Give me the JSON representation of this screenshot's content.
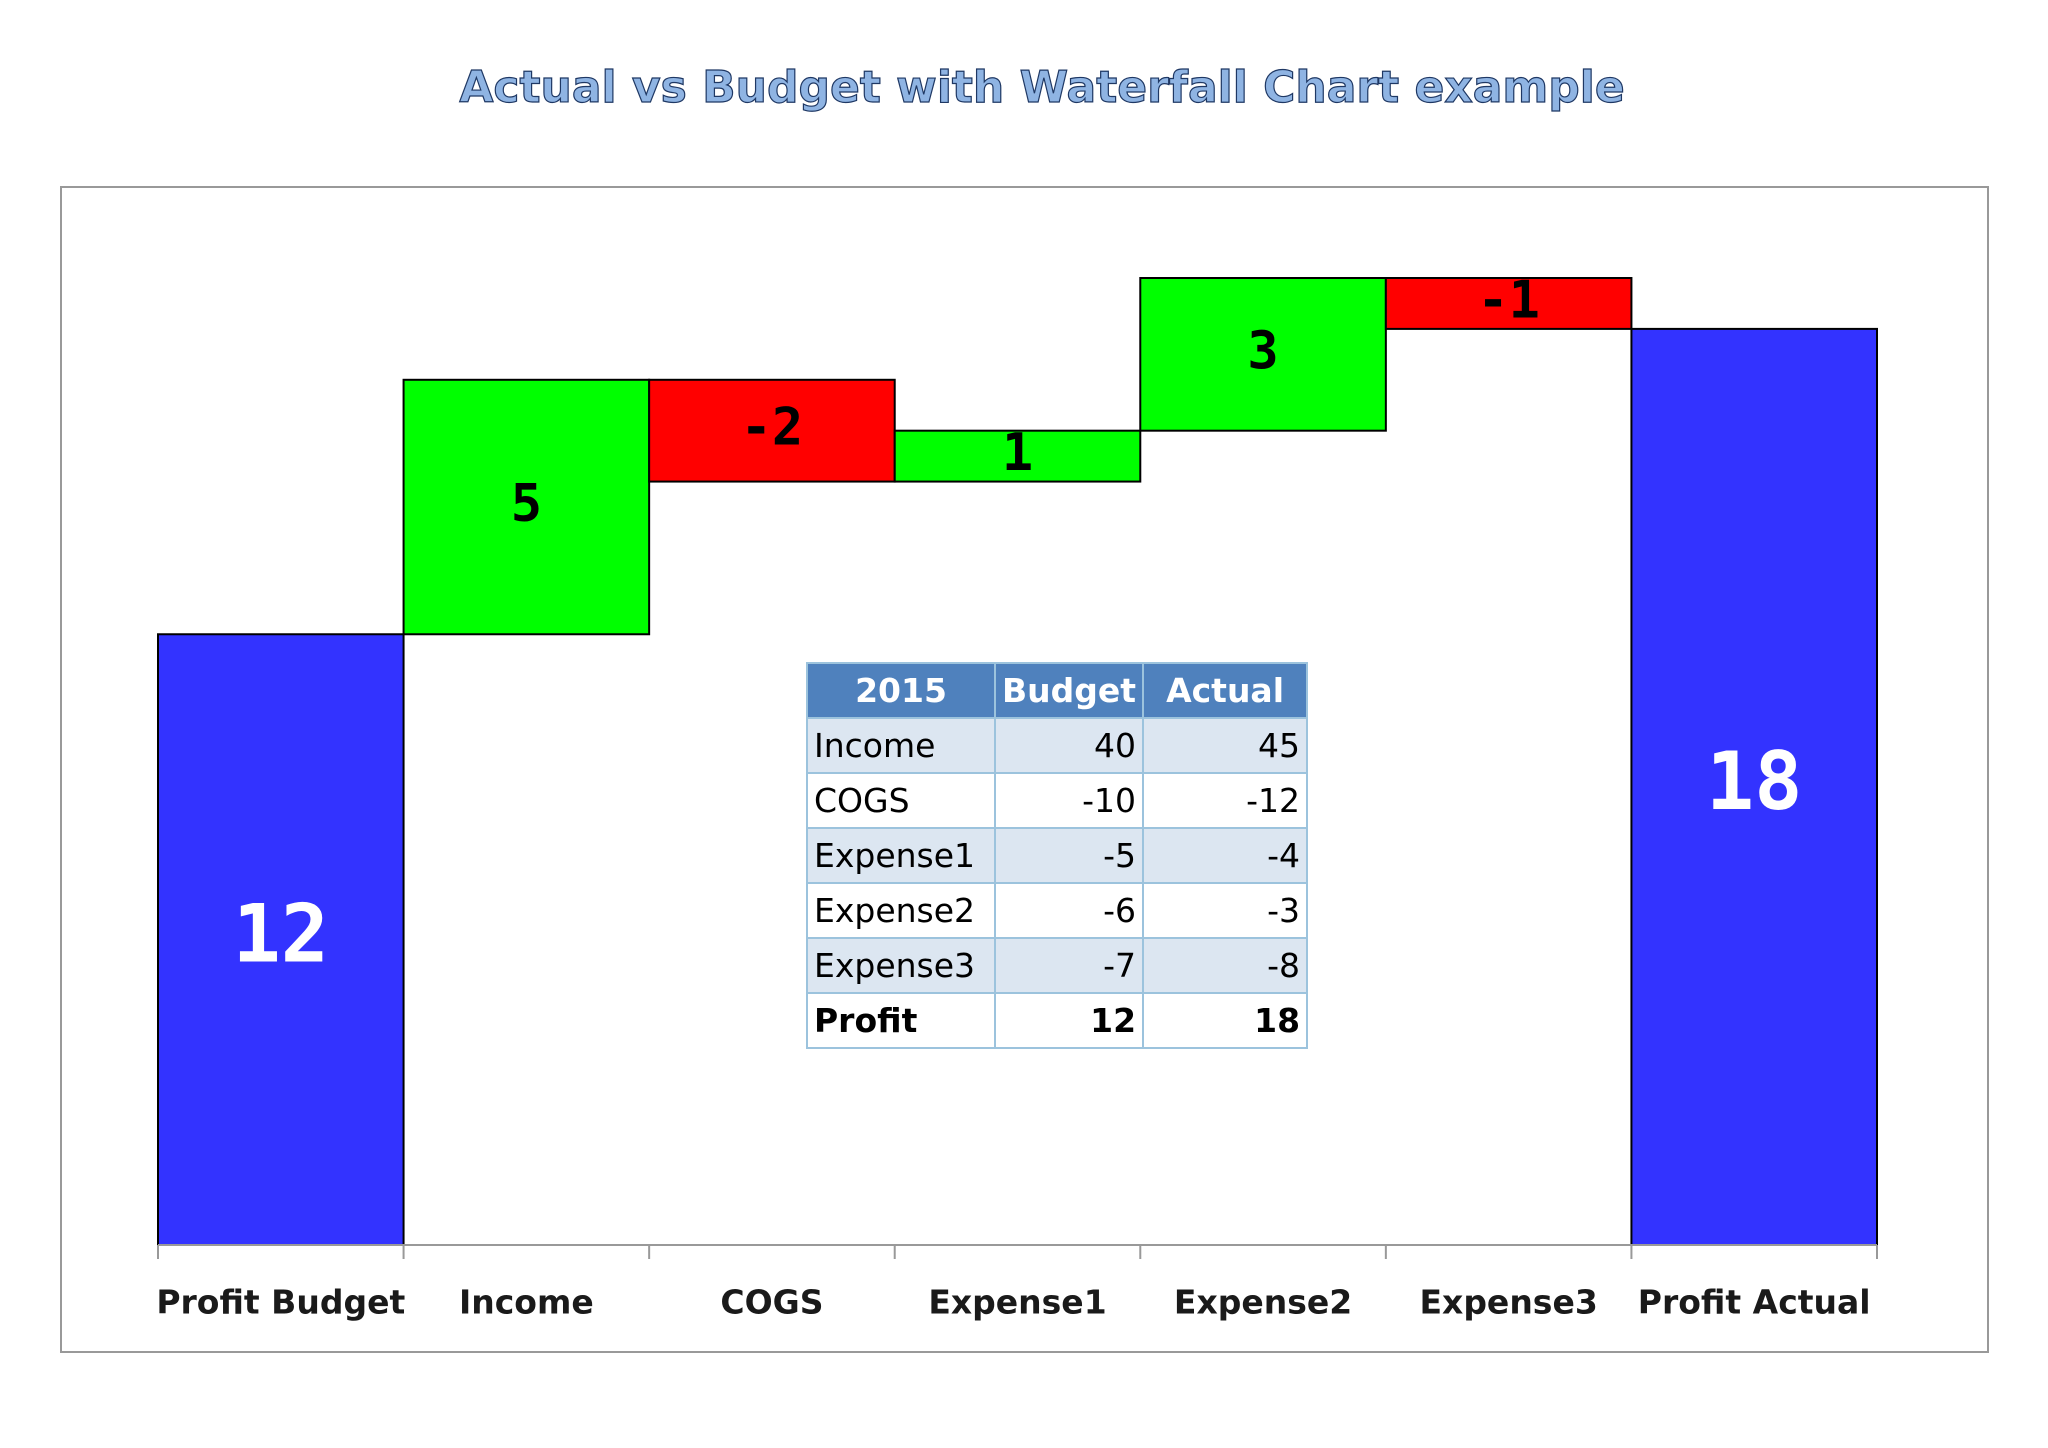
{
  "chart_data": {
    "type": "waterfall",
    "title": "Actual vs Budget with Waterfall Chart example",
    "categories": [
      "Profit Budget",
      "Income",
      "COGS",
      "Expense1",
      "Expense2",
      "Expense3",
      "Profit Actual"
    ],
    "values": [
      12,
      5,
      -2,
      1,
      3,
      -1,
      18
    ],
    "colors": [
      "#3333ff",
      "#00ff00",
      "#ff0000",
      "#00ff00",
      "#00ff00",
      "#ff0000",
      "#3333ff"
    ]
  },
  "table": {
    "header": [
      "2015",
      "Budget",
      "Actual"
    ],
    "rows": [
      [
        "Income",
        40,
        45
      ],
      [
        "COGS",
        -10,
        -12
      ],
      [
        "Expense1",
        -5,
        -4
      ],
      [
        "Expense2",
        -6,
        -3
      ],
      [
        "Expense3",
        -7,
        -8
      ],
      [
        "Profit",
        12,
        18
      ]
    ]
  }
}
